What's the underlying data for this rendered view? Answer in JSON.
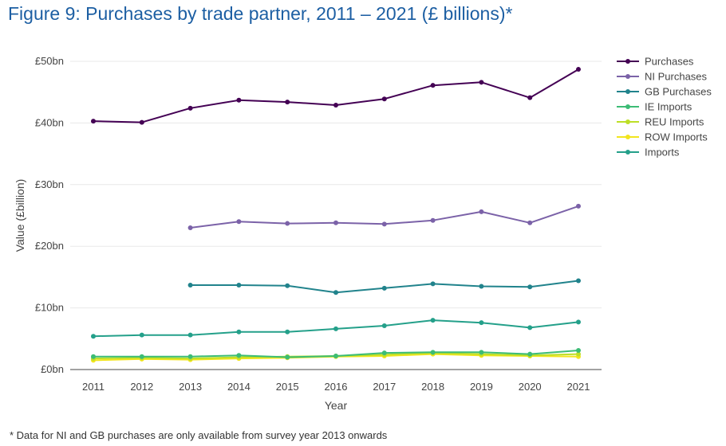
{
  "title": "Figure 9: Purchases by trade partner, 2011 – 2021 (£ billions)*",
  "footnote": "* Data for NI and GB purchases are only available from survey year 2013 onwards",
  "chart_data": {
    "type": "line",
    "xlabel": "Year",
    "ylabel": "Value (£billion)",
    "x": [
      2011,
      2012,
      2013,
      2014,
      2015,
      2016,
      2017,
      2018,
      2019,
      2020,
      2021
    ],
    "ylim": [
      0,
      50
    ],
    "yticks": [
      0,
      10,
      20,
      30,
      40,
      50
    ],
    "ytick_labels": [
      "£0bn",
      "£10bn",
      "£20bn",
      "£30bn",
      "£40bn",
      "£50bn"
    ],
    "grid": true,
    "legend_position": "top-right",
    "series": [
      {
        "name": "Purchases",
        "color": "#440154",
        "values": [
          40.3,
          40.1,
          42.4,
          43.7,
          43.4,
          42.9,
          43.9,
          46.1,
          46.6,
          44.1,
          48.7
        ]
      },
      {
        "name": "NI Purchases",
        "color": "#7b62a8",
        "values": [
          null,
          null,
          23.0,
          24.0,
          23.7,
          23.8,
          23.6,
          24.2,
          25.6,
          23.8,
          26.5
        ]
      },
      {
        "name": "GB Purchases",
        "color": "#21838c",
        "values": [
          null,
          null,
          13.7,
          13.7,
          13.6,
          12.5,
          13.2,
          13.9,
          13.5,
          13.4,
          14.4
        ]
      },
      {
        "name": "IE Imports",
        "color": "#3cbc75",
        "values": [
          2.1,
          2.1,
          2.1,
          2.3,
          2.0,
          2.2,
          2.7,
          2.8,
          2.8,
          2.5,
          3.1
        ]
      },
      {
        "name": "REU Imports",
        "color": "#bddf26",
        "values": [
          1.8,
          1.9,
          1.8,
          2.0,
          2.1,
          2.2,
          2.4,
          2.7,
          2.5,
          2.3,
          2.5
        ]
      },
      {
        "name": "ROW Imports",
        "color": "#f2e51d",
        "values": [
          1.5,
          1.7,
          1.6,
          1.8,
          1.9,
          2.1,
          2.2,
          2.5,
          2.3,
          2.2,
          2.1
        ]
      },
      {
        "name": "Imports",
        "color": "#24a08a",
        "values": [
          5.4,
          5.6,
          5.6,
          6.1,
          6.1,
          6.6,
          7.1,
          8.0,
          7.6,
          6.8,
          7.7
        ]
      }
    ]
  }
}
